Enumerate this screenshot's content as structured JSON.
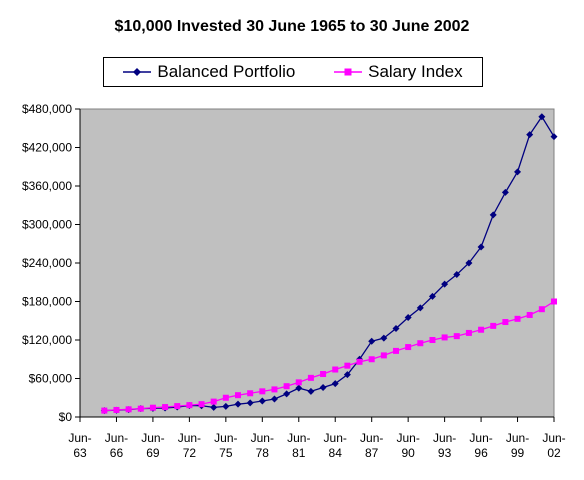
{
  "chart_data": {
    "type": "line",
    "title": "$10,000 Invested 30 June 1965 to 30 June 2002",
    "xlabel": "",
    "ylabel": "",
    "ylim": [
      0,
      480000
    ],
    "yticks": [
      0,
      60000,
      120000,
      180000,
      240000,
      300000,
      360000,
      420000,
      480000
    ],
    "ytick_labels": [
      "$0",
      "$60,000",
      "$120,000",
      "$180,000",
      "$240,000",
      "$300,000",
      "$360,000",
      "$420,000",
      "$480,000"
    ],
    "xlim": [
      1963,
      2002
    ],
    "xticks": [
      1963,
      1966,
      1969,
      1972,
      1975,
      1978,
      1981,
      1984,
      1987,
      1990,
      1993,
      1996,
      1999,
      2002
    ],
    "xtick_labels": [
      [
        "Jun-",
        "63"
      ],
      [
        "Jun-",
        "66"
      ],
      [
        "Jun-",
        "69"
      ],
      [
        "Jun-",
        "72"
      ],
      [
        "Jun-",
        "75"
      ],
      [
        "Jun-",
        "78"
      ],
      [
        "Jun-",
        "81"
      ],
      [
        "Jun-",
        "84"
      ],
      [
        "Jun-",
        "87"
      ],
      [
        "Jun-",
        "90"
      ],
      [
        "Jun-",
        "93"
      ],
      [
        "Jun-",
        "96"
      ],
      [
        "Jun-",
        "99"
      ],
      [
        "Jun-",
        "02"
      ]
    ],
    "x": [
      1965,
      1966,
      1967,
      1968,
      1969,
      1970,
      1971,
      1972,
      1973,
      1974,
      1975,
      1976,
      1977,
      1978,
      1979,
      1980,
      1981,
      1982,
      1983,
      1984,
      1985,
      1986,
      1987,
      1988,
      1989,
      1990,
      1991,
      1992,
      1993,
      1994,
      1995,
      1996,
      1997,
      1998,
      1999,
      2000,
      2001,
      2002
    ],
    "series": [
      {
        "name": "Balanced Portfolio",
        "color": "#000080",
        "marker": "diamond",
        "values": [
          10000,
          10500,
          11500,
          13000,
          13500,
          14000,
          15500,
          18000,
          17500,
          15000,
          16500,
          20000,
          22000,
          25000,
          28000,
          36000,
          45000,
          40000,
          46000,
          52000,
          66000,
          90000,
          118000,
          123000,
          138000,
          155000,
          170000,
          188000,
          207000,
          222000,
          240000,
          265000,
          315000,
          350000,
          382000,
          440000,
          468000,
          437000
        ]
      },
      {
        "name": "Salary Index",
        "color": "#ff00ff",
        "marker": "square",
        "values": [
          10000,
          11000,
          12000,
          13000,
          14500,
          15500,
          17000,
          18500,
          20000,
          24000,
          30000,
          34000,
          37000,
          40000,
          43000,
          48000,
          54000,
          61000,
          67000,
          74000,
          80000,
          86000,
          90000,
          96000,
          103000,
          109000,
          115000,
          120000,
          124000,
          126000,
          131000,
          136000,
          142000,
          148000,
          153000,
          159000,
          168000,
          180000
        ]
      }
    ],
    "legend_position": "top",
    "grid": false,
    "plot_background": "#c0c0c0"
  }
}
